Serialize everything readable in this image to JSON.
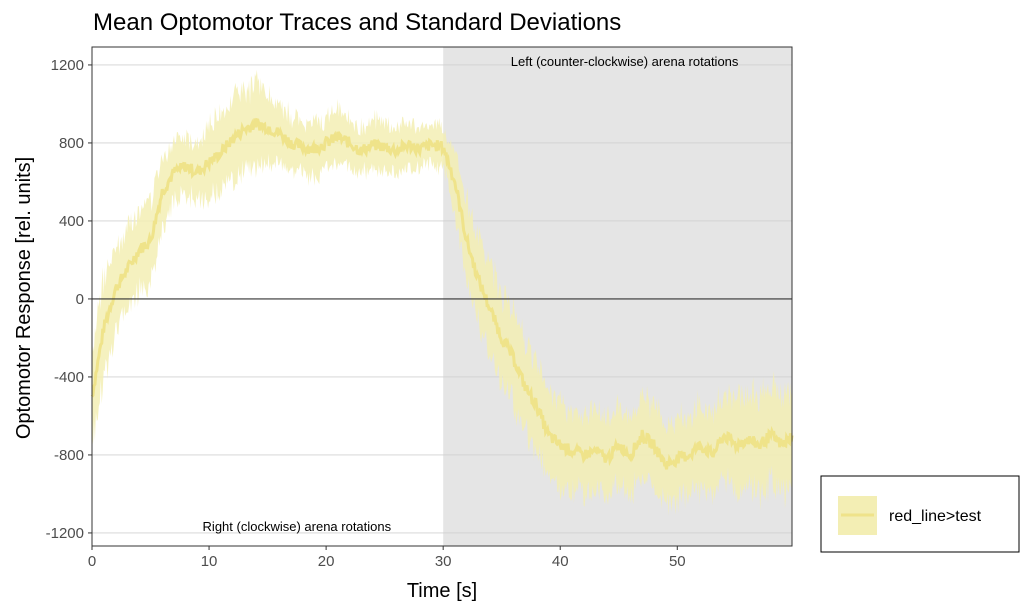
{
  "chart_data": {
    "type": "line",
    "title": "Mean Optomotor Traces and Standard Deviations",
    "xlabel": "Time [s]",
    "ylabel": "Optomotor Response [rel. units]",
    "xlim": [
      0,
      59.8
    ],
    "ylim": [
      -1267,
      1292
    ],
    "xticks": [
      0,
      10,
      20,
      30,
      40,
      50
    ],
    "yticks": [
      -1200,
      -800,
      -400,
      0,
      400,
      800,
      1200
    ],
    "grid": true,
    "shaded_region": {
      "x_from": 30,
      "x_to": 59.8,
      "color": "#e5e5e5"
    },
    "annotations": [
      {
        "text": "Right (clockwise) arena rotations",
        "x": 17.5,
        "y": -1170
      },
      {
        "text": "Left (counter-clockwise) arena rotations",
        "x": 45.5,
        "y": 1215
      }
    ],
    "legend": {
      "placement": "right-bottom",
      "entries": [
        "red_line>test"
      ]
    },
    "series": [
      {
        "name": "red_line>test",
        "line_color": "#efe38a",
        "band_color": "#f3eeb4",
        "x": [
          0,
          1,
          2,
          3,
          4,
          5,
          6,
          7,
          8,
          9,
          10,
          11,
          12,
          13,
          14,
          15,
          16,
          17,
          18,
          19,
          20,
          21,
          22,
          23,
          24,
          25,
          26,
          27,
          28,
          29,
          30,
          31,
          32,
          33,
          34,
          35,
          36,
          37,
          38,
          39,
          40,
          41,
          42,
          43,
          44,
          45,
          46,
          47,
          48,
          49,
          50,
          51,
          52,
          53,
          54,
          55,
          56,
          57,
          58,
          59,
          59.8
        ],
        "mean": [
          -500,
          -150,
          50,
          150,
          250,
          300,
          550,
          650,
          680,
          650,
          700,
          750,
          820,
          870,
          900,
          880,
          850,
          800,
          780,
          770,
          800,
          830,
          800,
          760,
          790,
          780,
          760,
          790,
          770,
          790,
          780,
          600,
          300,
          100,
          -50,
          -200,
          -300,
          -450,
          -550,
          -700,
          -750,
          -780,
          -800,
          -780,
          -820,
          -750,
          -800,
          -700,
          -750,
          -850,
          -820,
          -800,
          -750,
          -800,
          -700,
          -750,
          -720,
          -750,
          -700,
          -750,
          -700
        ],
        "sd": [
          250,
          250,
          220,
          200,
          200,
          200,
          180,
          150,
          150,
          150,
          180,
          200,
          220,
          200,
          200,
          180,
          160,
          150,
          130,
          130,
          130,
          130,
          120,
          120,
          120,
          120,
          110,
          110,
          110,
          100,
          100,
          150,
          200,
          220,
          220,
          220,
          230,
          230,
          230,
          220,
          220,
          200,
          200,
          200,
          200,
          200,
          200,
          200,
          200,
          200,
          200,
          200,
          220,
          220,
          230,
          230,
          230,
          250,
          250,
          250,
          250
        ]
      }
    ]
  }
}
